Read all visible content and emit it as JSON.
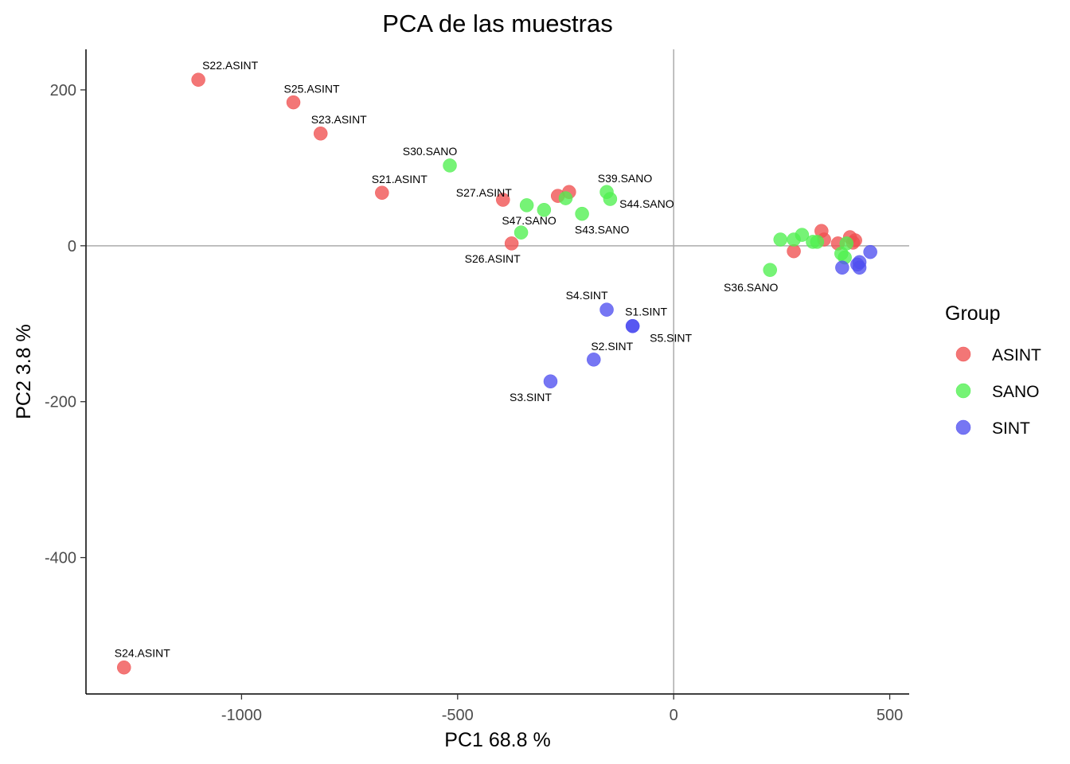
{
  "chart_data": {
    "type": "scatter",
    "title": "PCA de las muestras",
    "xlabel": "PC1 68.8 %",
    "ylabel": "PC2 3.8 %",
    "xlim": [
      -1360,
      545
    ],
    "ylim": [
      -575,
      252
    ],
    "xticks": [
      -1000,
      -500,
      0,
      500
    ],
    "yticks": [
      -400,
      -200,
      0,
      200
    ],
    "tick_labels_x": [
      "-1000",
      "-500",
      "0",
      "500"
    ],
    "tick_labels_y": [
      "-400",
      "-200",
      "0",
      "200"
    ],
    "reference_lines": {
      "x": 0,
      "y": 0
    },
    "grid": false,
    "legend": {
      "title": "Group",
      "position": "right",
      "entries": [
        {
          "name": "ASINT",
          "color": "#f05050"
        },
        {
          "name": "SANO",
          "color": "#50f050"
        },
        {
          "name": "SINT",
          "color": "#5050f0"
        }
      ]
    },
    "series": [
      {
        "name": "ASINT",
        "color": "#f05050",
        "points": [
          {
            "x": -1100,
            "y": 213,
            "label": "S22.ASINT"
          },
          {
            "x": -880,
            "y": 184,
            "label": "S25.ASINT"
          },
          {
            "x": -817,
            "y": 144,
            "label": "S23.ASINT"
          },
          {
            "x": -675,
            "y": 68,
            "label": "S21.ASINT"
          },
          {
            "x": -395,
            "y": 59,
            "label": "S27.ASINT"
          },
          {
            "x": -375,
            "y": 3,
            "label": "S26.ASINT"
          },
          {
            "x": -1272,
            "y": -541,
            "label": "S24.ASINT"
          },
          {
            "x": -268,
            "y": 64,
            "label": ""
          },
          {
            "x": -242,
            "y": 69,
            "label": ""
          },
          {
            "x": 278,
            "y": -7,
            "label": ""
          },
          {
            "x": 342,
            "y": 19,
            "label": ""
          },
          {
            "x": 348,
            "y": 8,
            "label": ""
          },
          {
            "x": 380,
            "y": 3,
            "label": ""
          },
          {
            "x": 408,
            "y": 11,
            "label": ""
          },
          {
            "x": 415,
            "y": 4,
            "label": ""
          },
          {
            "x": 420,
            "y": 7,
            "label": ""
          }
        ]
      },
      {
        "name": "SANO",
        "color": "#50f050",
        "points": [
          {
            "x": -518,
            "y": 103,
            "label": "S30.SANO"
          },
          {
            "x": -155,
            "y": 69,
            "label": "S39.SANO"
          },
          {
            "x": -147,
            "y": 60,
            "label": "S44.SANO"
          },
          {
            "x": -212,
            "y": 41,
            "label": "S43.SANO"
          },
          {
            "x": -353,
            "y": 17,
            "label": "S47.SANO"
          },
          {
            "x": 223,
            "y": -31,
            "label": "S36.SANO"
          },
          {
            "x": -340,
            "y": 52,
            "label": ""
          },
          {
            "x": -300,
            "y": 46,
            "label": ""
          },
          {
            "x": -250,
            "y": 61,
            "label": ""
          },
          {
            "x": 247,
            "y": 8,
            "label": ""
          },
          {
            "x": 278,
            "y": 8,
            "label": ""
          },
          {
            "x": 297,
            "y": 14,
            "label": ""
          },
          {
            "x": 322,
            "y": 5,
            "label": ""
          },
          {
            "x": 332,
            "y": 5,
            "label": ""
          },
          {
            "x": 388,
            "y": -10,
            "label": ""
          },
          {
            "x": 396,
            "y": -15,
            "label": ""
          },
          {
            "x": 400,
            "y": 3,
            "label": ""
          }
        ]
      },
      {
        "name": "SINT",
        "color": "#5050f0",
        "points": [
          {
            "x": -95,
            "y": -103,
            "label": "S1.SINT"
          },
          {
            "x": -95,
            "y": -103,
            "label": "S5.SINT"
          },
          {
            "x": -155,
            "y": -82,
            "label": "S4.SINT"
          },
          {
            "x": -185,
            "y": -146,
            "label": "S2.SINT"
          },
          {
            "x": -285,
            "y": -174,
            "label": "S3.SINT"
          },
          {
            "x": 390,
            "y": -28,
            "label": ""
          },
          {
            "x": 425,
            "y": -24,
            "label": ""
          },
          {
            "x": 430,
            "y": -28,
            "label": ""
          },
          {
            "x": 430,
            "y": -21,
            "label": ""
          },
          {
            "x": 455,
            "y": -8,
            "label": ""
          }
        ]
      }
    ],
    "label_offsets": {
      "S22.ASINT": [
        40,
        -18
      ],
      "S25.ASINT": [
        23,
        -17
      ],
      "S23.ASINT": [
        23,
        -18
      ],
      "S21.ASINT": [
        22,
        -17
      ],
      "S27.ASINT": [
        -24,
        -9
      ],
      "S26.ASINT": [
        -24,
        19
      ],
      "S24.ASINT": [
        23,
        -18
      ],
      "S30.SANO": [
        -25,
        -18
      ],
      "S39.SANO": [
        23,
        -17
      ],
      "S44.SANO": [
        46,
        6
      ],
      "S43.SANO": [
        25,
        20
      ],
      "S47.SANO": [
        10,
        -15
      ],
      "S36.SANO": [
        -24,
        22
      ],
      "S1.SINT": [
        17,
        -18
      ],
      "S5.SINT": [
        48,
        15
      ],
      "S4.SINT": [
        -25,
        -18
      ],
      "S2.SINT": [
        23,
        -17
      ],
      "S3.SINT": [
        -25,
        20
      ]
    }
  }
}
